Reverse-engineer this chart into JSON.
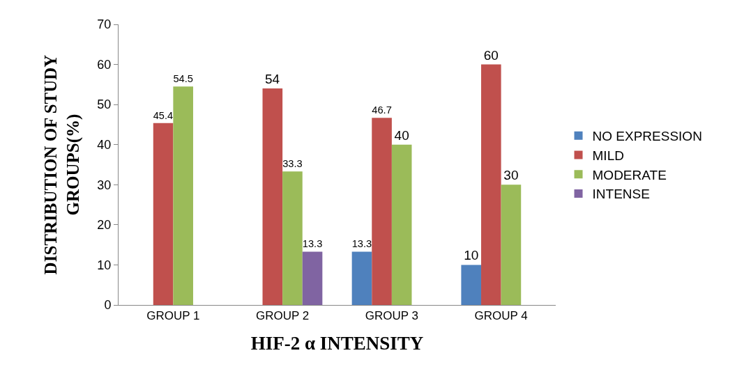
{
  "chart_data": {
    "type": "bar",
    "xlabel": "HIF-2 α INTENSITY",
    "ylabel": "DISTRIBUTION OF STUDY\nGROUPS(%)",
    "categories": [
      "GROUP 1",
      "GROUP 2",
      "GROUP 3",
      "GROUP 4"
    ],
    "series": [
      {
        "name": "NO EXPRESSION",
        "color": "#4f81bd",
        "values": [
          null,
          null,
          13.3,
          10
        ]
      },
      {
        "name": "MILD",
        "color": "#c0504d",
        "values": [
          45.4,
          54,
          46.7,
          60
        ]
      },
      {
        "name": "MODERATE",
        "color": "#9bbb59",
        "values": [
          54.5,
          33.3,
          40,
          30
        ]
      },
      {
        "name": "INTENSE",
        "color": "#8064a2",
        "values": [
          null,
          13.3,
          null,
          null
        ]
      }
    ],
    "ylim": [
      0,
      70
    ],
    "yticks": [
      0,
      10,
      20,
      30,
      40,
      50,
      60,
      70
    ],
    "grid": false,
    "legend": "right",
    "data_labels": true
  }
}
